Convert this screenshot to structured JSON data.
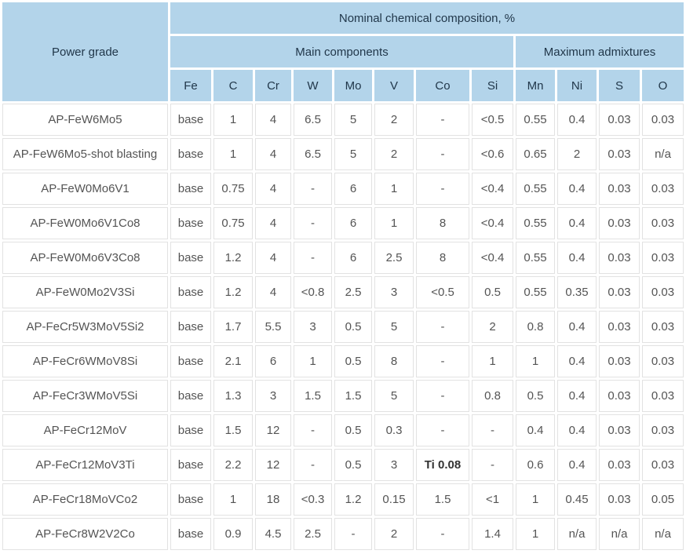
{
  "colors": {
    "header_bg": "#b3d4ea",
    "header_text": "#21374a",
    "cell_border": "#e2e2e2",
    "cell_text": "#545454",
    "page_bg": "#ffffff"
  },
  "chart_data": {
    "type": "table",
    "title": "Nominal chemical composition, %",
    "corner_header": "Power grade",
    "groups": [
      {
        "label": "Main components",
        "span": 8
      },
      {
        "label": "Maximum admixtures",
        "span": 4
      }
    ],
    "columns": [
      "Fe",
      "C",
      "Cr",
      "W",
      "Mo",
      "V",
      "Co",
      "Si",
      "Mn",
      "Ni",
      "S",
      "O"
    ],
    "rows": [
      {
        "grade": "AP-FeW6Mo5",
        "values": [
          "base",
          "1",
          "4",
          "6.5",
          "5",
          "2",
          "-",
          "<0.5",
          "0.55",
          "0.4",
          "0.03",
          "0.03"
        ]
      },
      {
        "grade": "AP-FeW6Mo5-shot blasting",
        "values": [
          "base",
          "1",
          "4",
          "6.5",
          "5",
          "2",
          "-",
          "<0.6",
          "0.65",
          "2",
          "0.03",
          "n/a"
        ]
      },
      {
        "grade": "AP-FeW0Mo6V1",
        "values": [
          "base",
          "0.75",
          "4",
          "-",
          "6",
          "1",
          "-",
          "<0.4",
          "0.55",
          "0.4",
          "0.03",
          "0.03"
        ]
      },
      {
        "grade": "AP-FeW0Mo6V1Co8",
        "values": [
          "base",
          "0.75",
          "4",
          "-",
          "6",
          "1",
          "8",
          "<0.4",
          "0.55",
          "0.4",
          "0.03",
          "0.03"
        ]
      },
      {
        "grade": "AP-FeW0Mo6V3Co8",
        "values": [
          "base",
          "1.2",
          "4",
          "-",
          "6",
          "2.5",
          "8",
          "<0.4",
          "0.55",
          "0.4",
          "0.03",
          "0.03"
        ]
      },
      {
        "grade": "AP-FeW0Mo2V3Si",
        "values": [
          "base",
          "1.2",
          "4",
          "<0.8",
          "2.5",
          "3",
          "<0.5",
          "0.5",
          "0.55",
          "0.35",
          "0.03",
          "0.03"
        ]
      },
      {
        "grade": "AP-FeCr5W3MoV5Si2",
        "values": [
          "base",
          "1.7",
          "5.5",
          "3",
          "0.5",
          "5",
          "-",
          "2",
          "0.8",
          "0.4",
          "0.03",
          "0.03"
        ]
      },
      {
        "grade": "AP-FeCr6WMoV8Si",
        "values": [
          "base",
          "2.1",
          "6",
          "1",
          "0.5",
          "8",
          "-",
          "1",
          "1",
          "0.4",
          "0.03",
          "0.03"
        ]
      },
      {
        "grade": "AP-FeCr3WMoV5Si",
        "values": [
          "base",
          "1.3",
          "3",
          "1.5",
          "1.5",
          "5",
          "-",
          "0.8",
          "0.5",
          "0.4",
          "0.03",
          "0.03"
        ]
      },
      {
        "grade": "AP-FeCr12MoV",
        "values": [
          "base",
          "1.5",
          "12",
          "-",
          "0.5",
          "0.3",
          "-",
          "-",
          "0.4",
          "0.4",
          "0.03",
          "0.03"
        ]
      },
      {
        "grade": "AP-FeCr12MoV3Ti",
        "values": [
          "base",
          "2.2",
          "12",
          "-",
          "0.5",
          "3",
          "Ti 0.08",
          "-",
          "0.6",
          "0.4",
          "0.03",
          "0.03"
        ],
        "bold_cols": [
          6
        ]
      },
      {
        "grade": "AP-FeCr18MoVCo2",
        "values": [
          "base",
          "1",
          "18",
          "<0.3",
          "1.2",
          "0.15",
          "1.5",
          "<1",
          "1",
          "0.45",
          "0.03",
          "0.05"
        ]
      },
      {
        "grade": "AP-FeCr8W2V2Co",
        "values": [
          "base",
          "0.9",
          "4.5",
          "2.5",
          "-",
          "2",
          "-",
          "1.4",
          "1",
          "n/a",
          "n/a",
          "n/a"
        ]
      }
    ]
  }
}
